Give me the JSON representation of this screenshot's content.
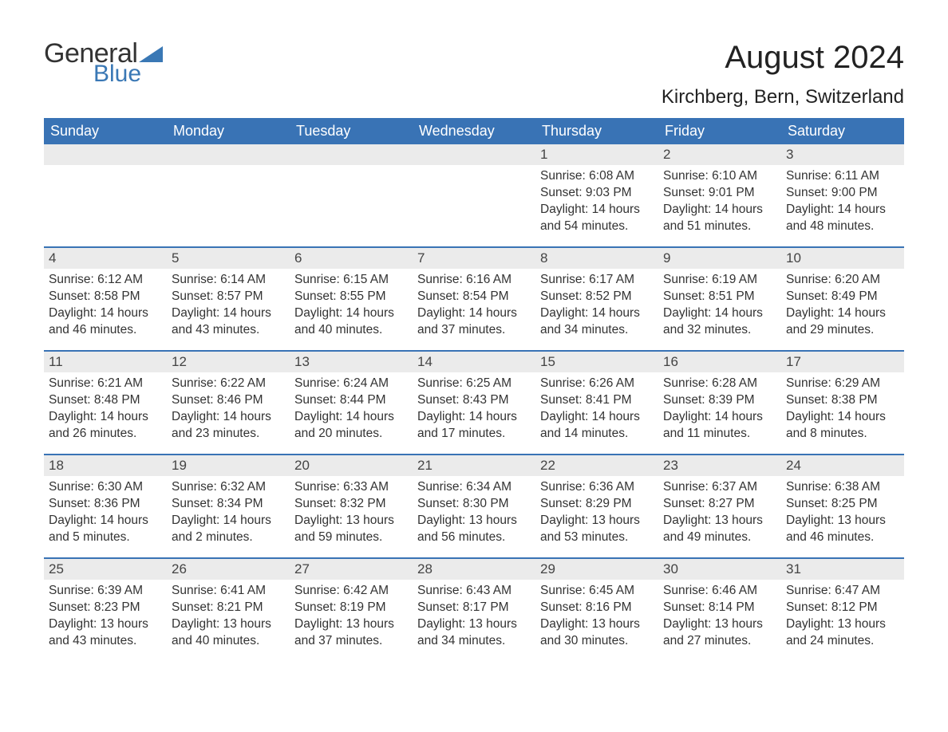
{
  "logo": {
    "text_general": "General",
    "text_blue": "Blue",
    "triangle_color": "#3a78b5"
  },
  "title": "August 2024",
  "location": "Kirchberg, Bern, Switzerland",
  "colors": {
    "header_bg": "#3973b5",
    "header_fg": "#ffffff",
    "daynum_bg": "#ebebeb",
    "rule": "#3973b5",
    "text": "#333333"
  },
  "weekdays": [
    "Sunday",
    "Monday",
    "Tuesday",
    "Wednesday",
    "Thursday",
    "Friday",
    "Saturday"
  ],
  "weeks": [
    [
      null,
      null,
      null,
      null,
      {
        "n": "1",
        "sunrise": "6:08 AM",
        "sunset": "9:03 PM",
        "daylight": "14 hours and 54 minutes."
      },
      {
        "n": "2",
        "sunrise": "6:10 AM",
        "sunset": "9:01 PM",
        "daylight": "14 hours and 51 minutes."
      },
      {
        "n": "3",
        "sunrise": "6:11 AM",
        "sunset": "9:00 PM",
        "daylight": "14 hours and 48 minutes."
      }
    ],
    [
      {
        "n": "4",
        "sunrise": "6:12 AM",
        "sunset": "8:58 PM",
        "daylight": "14 hours and 46 minutes."
      },
      {
        "n": "5",
        "sunrise": "6:14 AM",
        "sunset": "8:57 PM",
        "daylight": "14 hours and 43 minutes."
      },
      {
        "n": "6",
        "sunrise": "6:15 AM",
        "sunset": "8:55 PM",
        "daylight": "14 hours and 40 minutes."
      },
      {
        "n": "7",
        "sunrise": "6:16 AM",
        "sunset": "8:54 PM",
        "daylight": "14 hours and 37 minutes."
      },
      {
        "n": "8",
        "sunrise": "6:17 AM",
        "sunset": "8:52 PM",
        "daylight": "14 hours and 34 minutes."
      },
      {
        "n": "9",
        "sunrise": "6:19 AM",
        "sunset": "8:51 PM",
        "daylight": "14 hours and 32 minutes."
      },
      {
        "n": "10",
        "sunrise": "6:20 AM",
        "sunset": "8:49 PM",
        "daylight": "14 hours and 29 minutes."
      }
    ],
    [
      {
        "n": "11",
        "sunrise": "6:21 AM",
        "sunset": "8:48 PM",
        "daylight": "14 hours and 26 minutes."
      },
      {
        "n": "12",
        "sunrise": "6:22 AM",
        "sunset": "8:46 PM",
        "daylight": "14 hours and 23 minutes."
      },
      {
        "n": "13",
        "sunrise": "6:24 AM",
        "sunset": "8:44 PM",
        "daylight": "14 hours and 20 minutes."
      },
      {
        "n": "14",
        "sunrise": "6:25 AM",
        "sunset": "8:43 PM",
        "daylight": "14 hours and 17 minutes."
      },
      {
        "n": "15",
        "sunrise": "6:26 AM",
        "sunset": "8:41 PM",
        "daylight": "14 hours and 14 minutes."
      },
      {
        "n": "16",
        "sunrise": "6:28 AM",
        "sunset": "8:39 PM",
        "daylight": "14 hours and 11 minutes."
      },
      {
        "n": "17",
        "sunrise": "6:29 AM",
        "sunset": "8:38 PM",
        "daylight": "14 hours and 8 minutes."
      }
    ],
    [
      {
        "n": "18",
        "sunrise": "6:30 AM",
        "sunset": "8:36 PM",
        "daylight": "14 hours and 5 minutes."
      },
      {
        "n": "19",
        "sunrise": "6:32 AM",
        "sunset": "8:34 PM",
        "daylight": "14 hours and 2 minutes."
      },
      {
        "n": "20",
        "sunrise": "6:33 AM",
        "sunset": "8:32 PM",
        "daylight": "13 hours and 59 minutes."
      },
      {
        "n": "21",
        "sunrise": "6:34 AM",
        "sunset": "8:30 PM",
        "daylight": "13 hours and 56 minutes."
      },
      {
        "n": "22",
        "sunrise": "6:36 AM",
        "sunset": "8:29 PM",
        "daylight": "13 hours and 53 minutes."
      },
      {
        "n": "23",
        "sunrise": "6:37 AM",
        "sunset": "8:27 PM",
        "daylight": "13 hours and 49 minutes."
      },
      {
        "n": "24",
        "sunrise": "6:38 AM",
        "sunset": "8:25 PM",
        "daylight": "13 hours and 46 minutes."
      }
    ],
    [
      {
        "n": "25",
        "sunrise": "6:39 AM",
        "sunset": "8:23 PM",
        "daylight": "13 hours and 43 minutes."
      },
      {
        "n": "26",
        "sunrise": "6:41 AM",
        "sunset": "8:21 PM",
        "daylight": "13 hours and 40 minutes."
      },
      {
        "n": "27",
        "sunrise": "6:42 AM",
        "sunset": "8:19 PM",
        "daylight": "13 hours and 37 minutes."
      },
      {
        "n": "28",
        "sunrise": "6:43 AM",
        "sunset": "8:17 PM",
        "daylight": "13 hours and 34 minutes."
      },
      {
        "n": "29",
        "sunrise": "6:45 AM",
        "sunset": "8:16 PM",
        "daylight": "13 hours and 30 minutes."
      },
      {
        "n": "30",
        "sunrise": "6:46 AM",
        "sunset": "8:14 PM",
        "daylight": "13 hours and 27 minutes."
      },
      {
        "n": "31",
        "sunrise": "6:47 AM",
        "sunset": "8:12 PM",
        "daylight": "13 hours and 24 minutes."
      }
    ]
  ],
  "labels": {
    "sunrise": "Sunrise: ",
    "sunset": "Sunset: ",
    "daylight": "Daylight: "
  }
}
